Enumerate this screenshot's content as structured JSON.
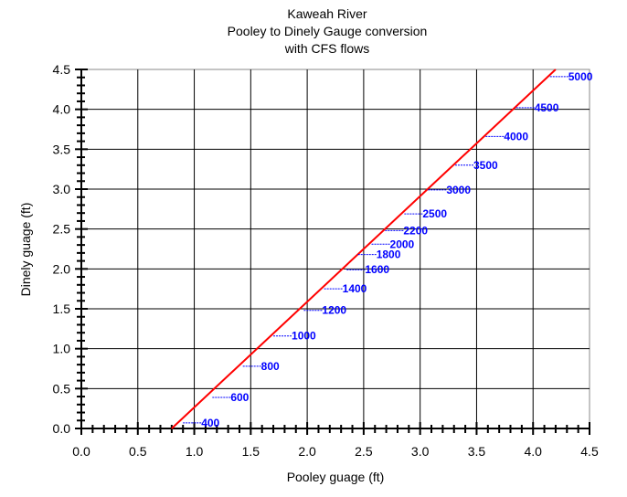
{
  "chart_data": {
    "type": "line",
    "title": [
      "Kaweah River",
      "Pooley to Dinely Gauge conversion",
      "with CFS flows"
    ],
    "xlabel": "Pooley guage (ft)",
    "ylabel": "Dinely guage (ft)",
    "xlim": [
      0,
      4.5
    ],
    "ylim": [
      0,
      4.5
    ],
    "xticks": [
      "0.0",
      "0.5",
      "1.0",
      "1.5",
      "2.0",
      "2.5",
      "3.0",
      "3.5",
      "4.0",
      "4.5"
    ],
    "yticks": [
      "0.0",
      "0.5",
      "1.0",
      "1.5",
      "2.0",
      "2.5",
      "3.0",
      "3.5",
      "4.0",
      "4.5"
    ],
    "grid": true,
    "line_color": "#ff0000",
    "annotation_color": "#0000ff",
    "series": [
      {
        "x": [
          0.8,
          4.2
        ],
        "y": [
          0.0,
          4.5
        ]
      }
    ],
    "annotations": [
      {
        "label": "400",
        "x": 0.9,
        "y": 0.07
      },
      {
        "label": "600",
        "x": 1.16,
        "y": 0.39
      },
      {
        "label": "800",
        "x": 1.43,
        "y": 0.78
      },
      {
        "label": "1000",
        "x": 1.7,
        "y": 1.16
      },
      {
        "label": "1200",
        "x": 1.97,
        "y": 1.48
      },
      {
        "label": "1400",
        "x": 2.15,
        "y": 1.75
      },
      {
        "label": "1600",
        "x": 2.35,
        "y": 1.99
      },
      {
        "label": "1800",
        "x": 2.45,
        "y": 2.18
      },
      {
        "label": "2000",
        "x": 2.57,
        "y": 2.31
      },
      {
        "label": "2200",
        "x": 2.69,
        "y": 2.48
      },
      {
        "label": "2500",
        "x": 2.86,
        "y": 2.69
      },
      {
        "label": "3000",
        "x": 3.07,
        "y": 2.99
      },
      {
        "label": "3500",
        "x": 3.31,
        "y": 3.3
      },
      {
        "label": "4000",
        "x": 3.58,
        "y": 3.66
      },
      {
        "label": "4500",
        "x": 3.85,
        "y": 4.02
      },
      {
        "label": "5000",
        "x": 4.15,
        "y": 4.41
      }
    ]
  }
}
